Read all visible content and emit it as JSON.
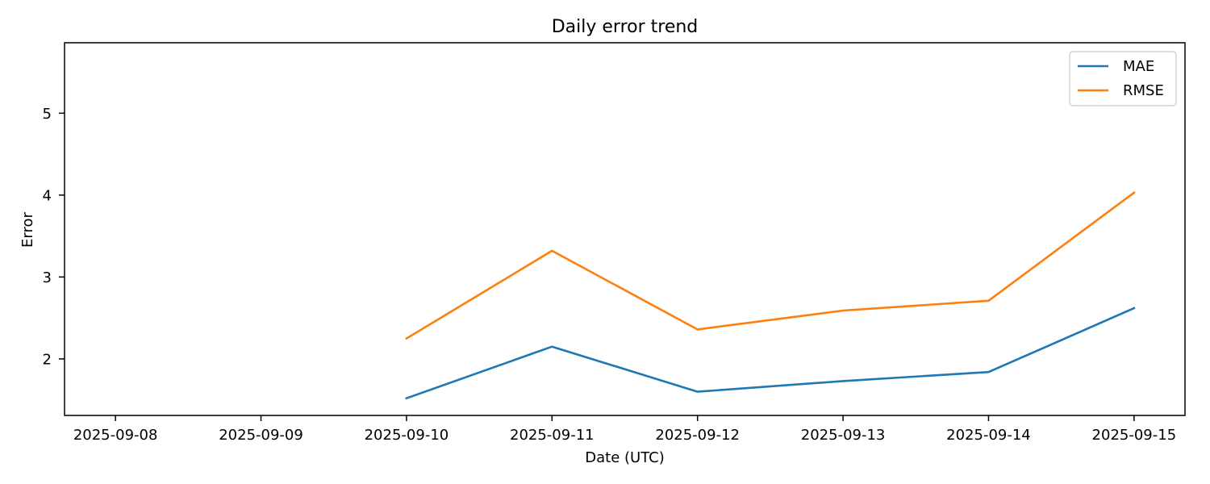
{
  "chart_data": {
    "type": "line",
    "title": "Daily error trend",
    "xlabel": "Date (UTC)",
    "ylabel": "Error",
    "x": [
      "2025-09-08",
      "2025-09-09",
      "2025-09-10",
      "2025-09-11",
      "2025-09-12",
      "2025-09-13",
      "2025-09-14",
      "2025-09-15"
    ],
    "series": [
      {
        "name": "MAE",
        "color": "#1f77b4",
        "values": [
          null,
          null,
          1.52,
          2.15,
          1.6,
          1.73,
          1.84,
          2.62
        ]
      },
      {
        "name": "RMSE",
        "color": "#ff7f0e",
        "values": [
          null,
          null,
          2.25,
          3.32,
          2.36,
          2.59,
          2.71,
          4.03
        ]
      }
    ],
    "xlim": [
      "2025-09-07 15:36",
      "2025-09-15 08:24"
    ],
    "ylim": [
      1.31,
      5.86
    ],
    "yticks": [
      2,
      3,
      4,
      5
    ],
    "grid": false,
    "legend": "top-right"
  }
}
